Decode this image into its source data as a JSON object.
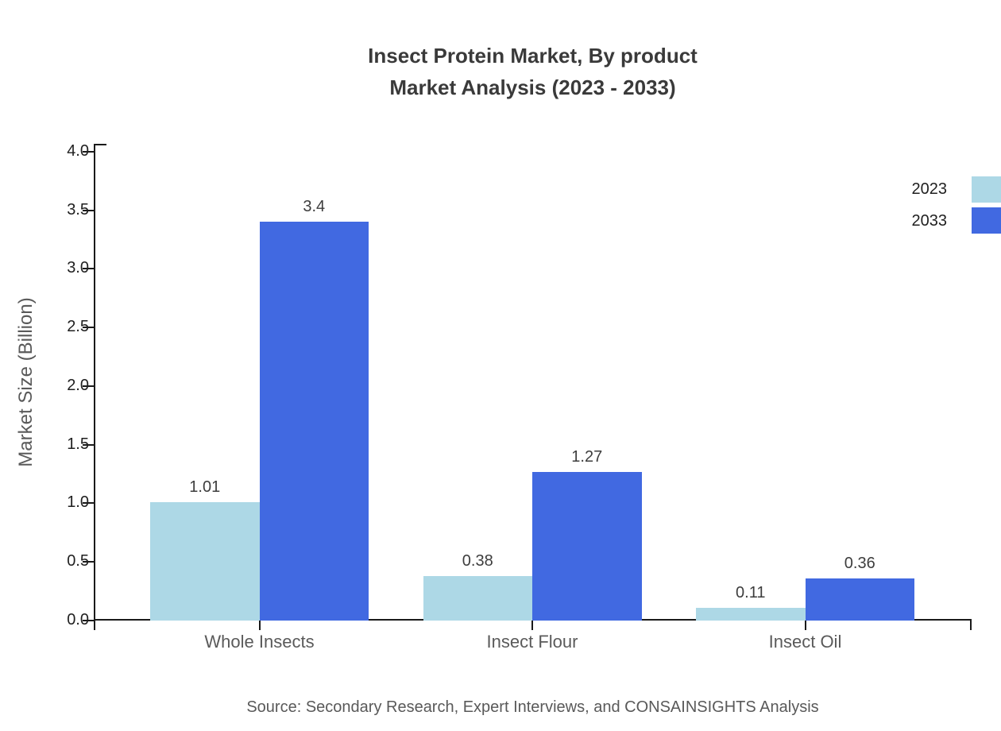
{
  "title": {
    "line1": "Insect Protein Market, By product",
    "line2": "Market Analysis (2023 - 2033)"
  },
  "source_text": "Source: Secondary Research, Expert Interviews, and CONSAINSIGHTS Analysis",
  "legend": {
    "items": [
      {
        "label": "2023",
        "color": "#add8e6"
      },
      {
        "label": "2033",
        "color": "#4169e1"
      }
    ]
  },
  "colors": {
    "series_2023": "#add8e6",
    "series_2033": "#4169e1",
    "axis": "#1a1a1a",
    "title_text": "#3a3a3a",
    "value_text": "#3d3d3d",
    "category_text": "#5a5a5a",
    "source_text": "#595959"
  },
  "chart_data": {
    "type": "bar",
    "title": "Insect Protein Market, By product Market Analysis (2023 - 2033)",
    "categories": [
      "Whole Insects",
      "Insect Flour",
      "Insect Oil"
    ],
    "series": [
      {
        "name": "2023",
        "color": "#add8e6",
        "values": [
          1.01,
          0.38,
          0.11
        ],
        "labels": [
          "1.01",
          "0.38",
          "0.11"
        ]
      },
      {
        "name": "2033",
        "color": "#4169e1",
        "values": [
          3.4,
          1.27,
          0.36
        ],
        "labels": [
          "3.4",
          "1.27",
          "0.36"
        ]
      }
    ],
    "xlabel": "",
    "ylabel": "Market Size (Billion)",
    "ylim": [
      0.0,
      4.0
    ],
    "ytick_step": 0.5,
    "ytick_labels": [
      "0.0",
      "0.5",
      "1.0",
      "1.5",
      "2.0",
      "2.5",
      "3.0",
      "3.5",
      "4.0"
    ],
    "grid": false,
    "legend_position": "upper right",
    "bar_value_labels": true
  }
}
